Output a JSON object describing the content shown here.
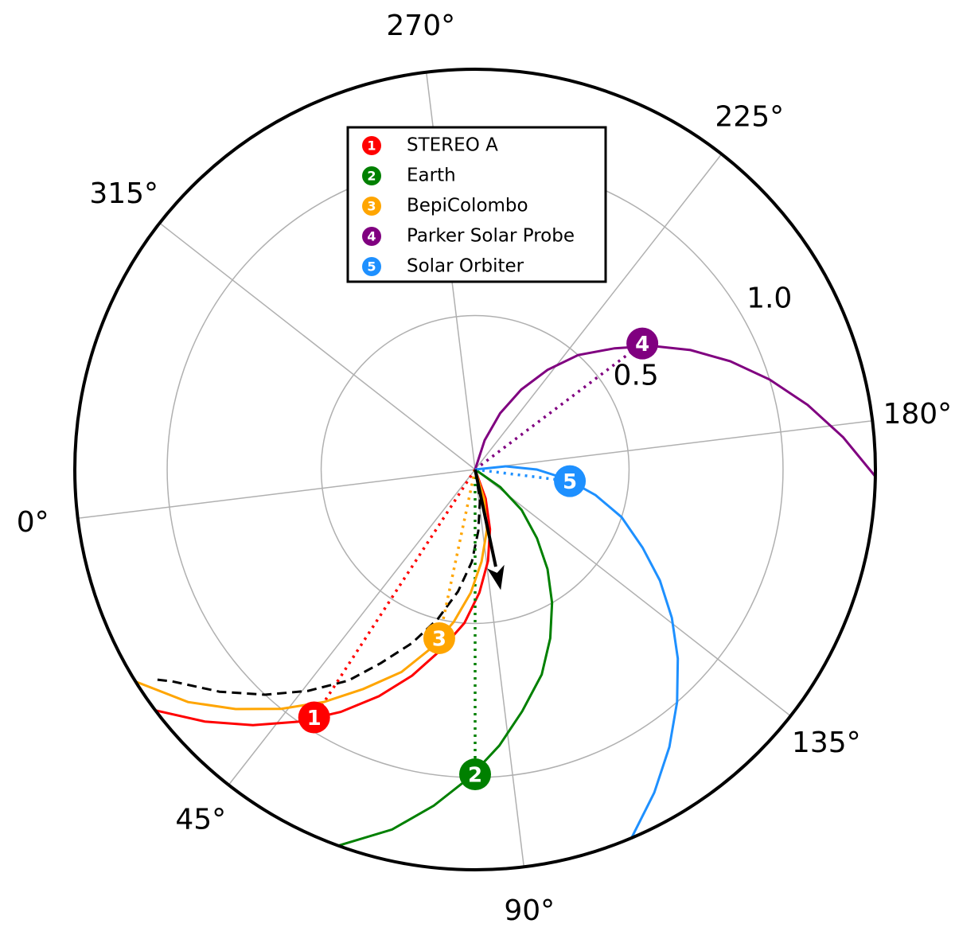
{
  "chart_data": {
    "type": "polar",
    "rlim": [
      0,
      1.3
    ],
    "rticks": [
      {
        "value": 0.5,
        "label": "0.5"
      },
      {
        "value": 1,
        "label": "1.0"
      }
    ],
    "thetaticks": [
      {
        "value": 0,
        "label": "0°"
      },
      {
        "value": 45,
        "label": "45°"
      },
      {
        "value": 90,
        "label": "90°"
      },
      {
        "value": 135,
        "label": "135°"
      },
      {
        "value": 180,
        "label": "180°"
      },
      {
        "value": 225,
        "label": "225°"
      },
      {
        "value": 270,
        "label": "270°"
      },
      {
        "value": 315,
        "label": "315°"
      }
    ],
    "grid": true,
    "legend": "upper center",
    "bodies": [
      {
        "name": "STEREO A",
        "marker_label": "1",
        "color": "#ff0000",
        "lon": 50,
        "r": 0.96,
        "spiral": {
          "r": [
            0,
            0.1,
            0.2,
            0.3,
            0.4,
            0.5,
            0.6,
            0.7,
            0.8,
            0.9,
            1.0,
            1.1,
            1.2,
            1.3
          ],
          "theta": [
            109,
            103,
            97,
            91,
            85,
            79,
            72,
            66,
            60,
            54,
            48,
            42,
            36,
            30
          ]
        }
      },
      {
        "name": "Earth",
        "marker_label": "2",
        "color": "#008000",
        "lon": 83,
        "r": 0.99,
        "spiral": {
          "r": [
            0,
            0.1,
            0.2,
            0.3,
            0.4,
            0.5,
            0.6,
            0.7,
            0.8,
            0.9,
            1.0,
            1.1,
            1.2,
            1.3
          ],
          "theta": [
            144,
            138,
            132,
            125,
            119,
            113,
            107,
            101,
            94,
            88,
            82,
            76,
            70,
            63
          ]
        }
      },
      {
        "name": "BepiColombo",
        "marker_label": "3",
        "color": "#ffa500",
        "lon": 71,
        "r": 0.56,
        "spiral": {
          "r": [
            0,
            0.1,
            0.2,
            0.3,
            0.4,
            0.5,
            0.6,
            0.7,
            0.8,
            0.9,
            1.0,
            1.1,
            1.2,
            1.3
          ],
          "theta": [
            106,
            100,
            94,
            87,
            81,
            75,
            69,
            63,
            56,
            50,
            44,
            38,
            32,
            25
          ]
        }
      },
      {
        "name": "Parker Solar Probe",
        "marker_label": "4",
        "color": "#800080",
        "lon": 210,
        "r": 0.68,
        "spiral": {
          "r": [
            0,
            0.1,
            0.2,
            0.3,
            0.4,
            0.5,
            0.6,
            0.7,
            0.8,
            0.9,
            1.0,
            1.1,
            1.2,
            1.3
          ],
          "theta": [
            251,
            245,
            239,
            233,
            227,
            221,
            214,
            208,
            202,
            196,
            190,
            184,
            178,
            172
          ]
        }
      },
      {
        "name": "Solar Orbiter",
        "marker_label": "5",
        "color": "#1e90ff",
        "lon": 166,
        "r": 0.31,
        "spiral": {
          "r": [
            0,
            0.1,
            0.2,
            0.3,
            0.4,
            0.5,
            0.6,
            0.7,
            0.8,
            0.9,
            1.0,
            1.1,
            1.2,
            1.3
          ],
          "theta": [
            185,
            179,
            173,
            167,
            161,
            155,
            148,
            142,
            136,
            130,
            124,
            118,
            112,
            106
          ]
        }
      }
    ],
    "reference": {
      "color": "#000000",
      "spiral": {
        "r": [
          0,
          0.1,
          0.2,
          0.3,
          0.4,
          0.5,
          0.6,
          0.7,
          0.8,
          0.9,
          1.0,
          1.1,
          1.2,
          1.25
        ],
        "theta": [
          98,
          92,
          86,
          81,
          75,
          69,
          63,
          57,
          52,
          46,
          40,
          34,
          28,
          26
        ]
      },
      "arrow": {
        "theta": 95,
        "r": 0.4
      }
    }
  }
}
